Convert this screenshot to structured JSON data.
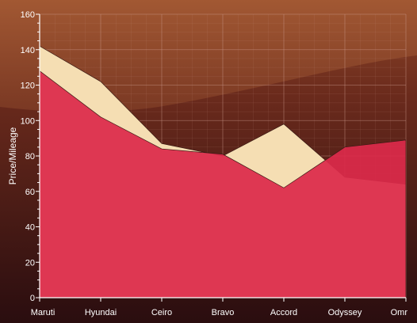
{
  "chart_data": {
    "type": "area",
    "title": "",
    "xlabel": "",
    "ylabel": "Price/Mileage",
    "ylim": [
      0,
      160
    ],
    "yticks": [
      0,
      20,
      40,
      60,
      80,
      100,
      120,
      140,
      160
    ],
    "categories": [
      "Maruti",
      "Hyundai",
      "Ceiro",
      "Bravo",
      "Accord",
      "Odyssey",
      "Omr"
    ],
    "series": [
      {
        "values": [
          142,
          122,
          87,
          80,
          98,
          68,
          64
        ],
        "color": "#f5deb3"
      },
      {
        "values": [
          128,
          102,
          84,
          81,
          62,
          85,
          89
        ],
        "color": "#dc2a4a"
      }
    ],
    "grid": true,
    "legend": "none",
    "colors": {
      "background_top": "#8e4628",
      "background_bottom": "#2a0d0f",
      "grid": "#c9978a",
      "axis": "#ffffff",
      "text": "#ffffff"
    }
  }
}
